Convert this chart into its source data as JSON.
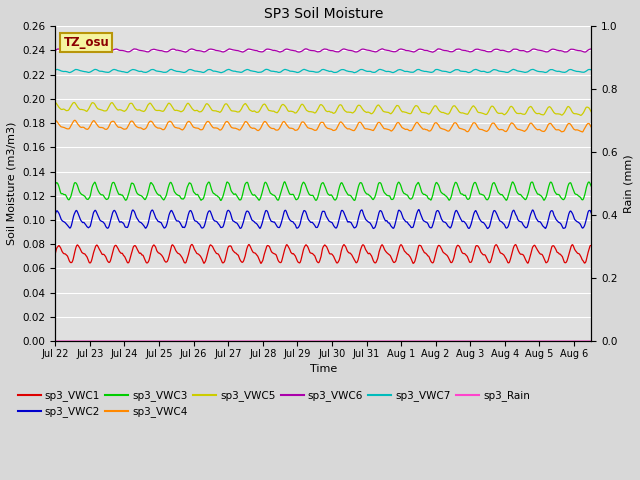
{
  "title": "SP3 Soil Moisture",
  "xlabel": "Time",
  "ylabel_left": "Soil Moisture (m3/m3)",
  "ylabel_right": "Rain (mm)",
  "ylim_left": [
    0.0,
    0.26
  ],
  "ylim_right": [
    0.0,
    1.0
  ],
  "xlim_days": [
    0,
    15.5
  ],
  "fig_facecolor": "#d8d8d8",
  "ax_facecolor": "#e0e0e0",
  "series": {
    "sp3_VWC1": {
      "color": "#dd0000",
      "base": 0.072,
      "amp": 0.006,
      "period": 0.55,
      "phase": 0.0,
      "noise": 0.001
    },
    "sp3_VWC2": {
      "color": "#0000cc",
      "base": 0.1,
      "amp": 0.006,
      "period": 0.55,
      "phase": 0.1,
      "noise": 0.001
    },
    "sp3_VWC3": {
      "color": "#00cc00",
      "base": 0.123,
      "amp": 0.006,
      "period": 0.55,
      "phase": 0.15,
      "noise": 0.001
    },
    "sp3_VWC4": {
      "color": "#ff8800",
      "base": 0.178,
      "amp": 0.003,
      "period": 0.55,
      "phase": 0.2,
      "noise": 0.0005
    },
    "sp3_VWC5": {
      "color": "#cccc00",
      "base": 0.193,
      "amp": 0.003,
      "period": 0.55,
      "phase": 0.25,
      "noise": 0.0005
    },
    "sp3_VWC6": {
      "color": "#aa00aa",
      "base": 0.24,
      "amp": 0.001,
      "period": 0.55,
      "phase": 0.0,
      "noise": 0.0003
    },
    "sp3_VWC7": {
      "color": "#00bbbb",
      "base": 0.223,
      "amp": 0.001,
      "period": 0.55,
      "phase": 0.1,
      "noise": 0.0003
    },
    "sp3_Rain": {
      "color": "#ff44cc",
      "base": 0.0,
      "amp": 0.0,
      "period": 1.0,
      "phase": 0.0,
      "noise": 0.0
    }
  },
  "xtick_labels": [
    "Jul 22",
    "Jul 23",
    "Jul 24",
    "Jul 25",
    "Jul 26",
    "Jul 27",
    "Jul 28",
    "Jul 29",
    "Jul 30",
    "Jul 31",
    "Aug 1",
    "Aug 2",
    "Aug 3",
    "Aug 4",
    "Aug 5",
    "Aug 6"
  ],
  "yticks_left": [
    0.0,
    0.02,
    0.04,
    0.06,
    0.08,
    0.1,
    0.12,
    0.14,
    0.16,
    0.18,
    0.2,
    0.22,
    0.24,
    0.26
  ],
  "yticks_right": [
    0.0,
    0.2,
    0.4,
    0.6,
    0.8,
    1.0
  ],
  "grid_color": "#ffffff",
  "annotation_text": "TZ_osu",
  "annotation_bg": "#f5f5a0",
  "annotation_border": "#b8960a",
  "legend_order": [
    "sp3_VWC1",
    "sp3_VWC2",
    "sp3_VWC3",
    "sp3_VWC4",
    "sp3_VWC5",
    "sp3_VWC6",
    "sp3_VWC7",
    "sp3_Rain"
  ]
}
